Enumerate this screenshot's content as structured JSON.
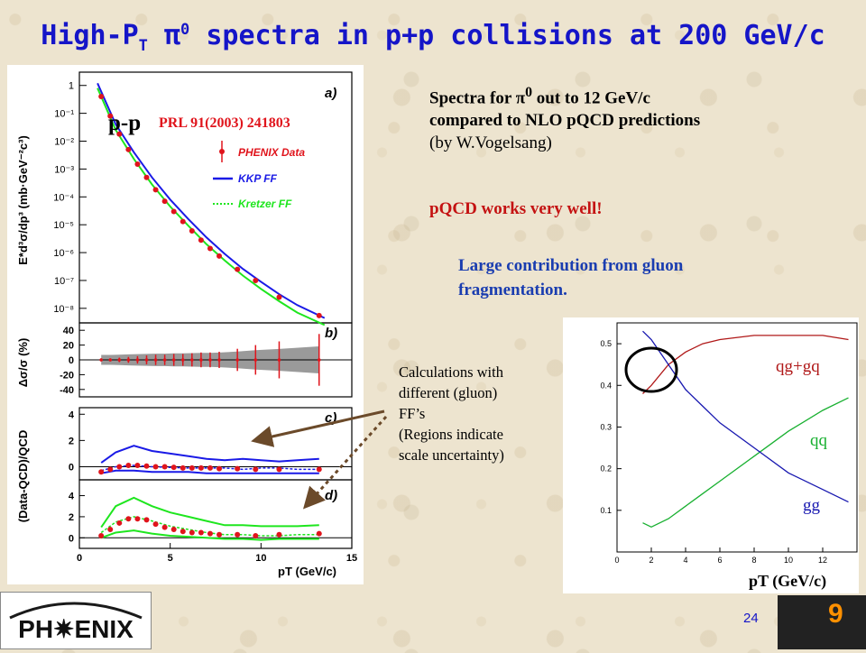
{
  "slide": {
    "title_main": "High-P",
    "title_sub": "T",
    "title_pi": "π",
    "title_zero": "0",
    "title_rest": " spectra in p+p collisions at 200 GeV/c",
    "page_number": "24",
    "logo_text": "PH✷ENIX",
    "photo_label": "9"
  },
  "text": {
    "line1a": "Spectra for ",
    "pi": "π",
    "zero": "0",
    "line1b": " out to 12 GeV/c",
    "line2": "compared to NLO pQCD predictions",
    "line3": "(by W.Vogelsang)",
    "pqcd": "pQCD works very well!",
    "gluon1": "Large contribution from gluon",
    "gluon2": "fragmentation.",
    "calc": [
      "Calculations with",
      "different (gluon)",
      "FF’s",
      "(Regions indicate",
      "scale uncertainty)"
    ]
  },
  "colors": {
    "title": "#1515c8",
    "data": "#e0141c",
    "kkp": "#1a1ae6",
    "kretzer": "#1ee61e",
    "qggq": "#b01818",
    "qq": "#18b030",
    "gg": "#1818b0"
  },
  "chart_data": [
    {
      "type": "scatter",
      "panel": "a)",
      "label_pp": "p-p",
      "label_ref": "PRL 91(2003) 241803",
      "ylabel": "E*d³σ/dp³ (mb·GeV⁻²c³)",
      "log_y": true,
      "ylim": [
        3e-09,
        3
      ],
      "xlim": [
        0,
        15
      ],
      "ytick_labels": [
        "1",
        "10⁻¹",
        "10⁻²",
        "10⁻³",
        "10⁻⁴",
        "10⁻⁵",
        "10⁻⁶",
        "10⁻⁷",
        "10⁻⁸"
      ],
      "legend": [
        "PHENIX Data",
        "KKP FF",
        "Kretzer FF"
      ],
      "series": [
        {
          "name": "PHENIX Data",
          "x": [
            1.2,
            1.7,
            2.2,
            2.7,
            3.2,
            3.7,
            4.2,
            4.7,
            5.2,
            5.7,
            6.2,
            6.7,
            7.2,
            7.7,
            8.7,
            9.7,
            11.0,
            13.2
          ],
          "y": [
            0.4,
            0.08,
            0.018,
            0.005,
            0.0015,
            0.0005,
            0.00018,
            7e-05,
            3e-05,
            1.3e-05,
            6e-06,
            2.8e-06,
            1.4e-06,
            7.5e-07,
            2.5e-07,
            1e-07,
            2.5e-08,
            5.5e-09
          ]
        },
        {
          "name": "KKP FF",
          "x": [
            1,
            2,
            3,
            4,
            5,
            6,
            7,
            8,
            9,
            10,
            11,
            12,
            13.5
          ],
          "y": [
            1.2,
            0.04,
            0.004,
            0.0005,
            8e-05,
            1.6e-05,
            3.5e-06,
            9e-07,
            2.6e-07,
            9e-08,
            3.2e-08,
            1.3e-08,
            4.5e-09
          ]
        },
        {
          "name": "Kretzer FF",
          "x": [
            1,
            2,
            3,
            4,
            5,
            6,
            7,
            8,
            9,
            10,
            11,
            12,
            13.5
          ],
          "y": [
            0.8,
            0.025,
            0.0023,
            0.00028,
            4.5e-05,
            9.2e-06,
            2e-06,
            5.2e-07,
            1.5e-07,
            5e-08,
            1.8e-08,
            7e-09,
            2.5e-09
          ]
        }
      ]
    },
    {
      "type": "scatter",
      "panel": "b)",
      "ylabel": "Δσ/σ (%)",
      "ylim": [
        -50,
        50
      ],
      "yticks": [
        40,
        20,
        0,
        -20,
        -40
      ],
      "xlim": [
        0,
        15
      ],
      "series": [
        {
          "name": "",
          "x": [
            1.2,
            1.7,
            2.2,
            2.7,
            3.2,
            3.7,
            4.2,
            4.7,
            5.2,
            5.7,
            6.2,
            6.7,
            7.2,
            7.7,
            8.7,
            9.7,
            11.0,
            13.2
          ],
          "y": [
            0,
            0,
            0,
            0,
            0,
            0,
            0,
            0,
            0,
            0,
            0,
            0,
            0,
            0,
            0,
            0,
            0,
            0
          ],
          "err": [
            2,
            2,
            3,
            4,
            5,
            6,
            7,
            7,
            8,
            8,
            9,
            10,
            10,
            11,
            15,
            20,
            25,
            35
          ]
        }
      ]
    },
    {
      "type": "line",
      "panel": "c)",
      "ylabel": "(Data-QCD)/QCD",
      "ylim": [
        -1,
        4.5
      ],
      "yticks": [
        4,
        2,
        0
      ],
      "xlim": [
        0,
        15
      ],
      "series": [
        {
          "name": "KKP upper",
          "x": [
            1.2,
            2,
            3,
            4,
            5,
            6,
            7,
            8,
            9,
            10,
            11,
            12,
            13.2
          ],
          "y": [
            0.3,
            1.1,
            1.6,
            1.2,
            1.0,
            0.8,
            0.6,
            0.5,
            0.6,
            0.5,
            0.4,
            0.5,
            0.6
          ]
        },
        {
          "name": "KKP central",
          "x": [
            1.2,
            2,
            3,
            4,
            5,
            6,
            7,
            8,
            9,
            10,
            11,
            12,
            13.2
          ],
          "y": [
            -0.3,
            0.0,
            0.1,
            0.0,
            -0.05,
            -0.1,
            -0.1,
            -0.1,
            -0.2,
            -0.1,
            -0.1,
            -0.2,
            -0.2
          ]
        },
        {
          "name": "KKP lower",
          "x": [
            1.2,
            2,
            3,
            4,
            5,
            6,
            7,
            8,
            9,
            10,
            11,
            12,
            13.2
          ],
          "y": [
            -0.5,
            -0.3,
            -0.3,
            -0.4,
            -0.4,
            -0.4,
            -0.5,
            -0.5,
            -0.5,
            -0.5,
            -0.5,
            -0.5,
            -0.5
          ]
        },
        {
          "name": "data",
          "x": [
            1.2,
            1.7,
            2.2,
            2.7,
            3.2,
            3.7,
            4.2,
            4.7,
            5.2,
            5.7,
            6.2,
            6.7,
            7.2,
            7.7,
            8.7,
            9.7,
            11.0,
            13.2
          ],
          "y": [
            -0.4,
            -0.2,
            0.0,
            0.1,
            0.1,
            0.05,
            0.0,
            0.0,
            -0.05,
            -0.1,
            -0.1,
            -0.1,
            -0.1,
            -0.15,
            -0.15,
            -0.2,
            -0.2,
            -0.2
          ]
        }
      ]
    },
    {
      "type": "line",
      "panel": "d)",
      "ylim": [
        -1,
        5.5
      ],
      "yticks": [
        4,
        2,
        0
      ],
      "xlim": [
        0,
        15
      ],
      "xticks": [
        0,
        5,
        10,
        15
      ],
      "xlabel": "pT (GeV/c)",
      "series": [
        {
          "name": "Kretzer upper",
          "x": [
            1.2,
            2,
            3,
            4,
            5,
            6,
            7,
            8,
            9,
            10,
            11,
            12,
            13.2
          ],
          "y": [
            1.0,
            3.0,
            3.8,
            3.0,
            2.4,
            2.0,
            1.6,
            1.2,
            1.2,
            1.1,
            1.1,
            1.1,
            1.2
          ]
        },
        {
          "name": "Kretzer central",
          "x": [
            1.2,
            2,
            3,
            4,
            5,
            6,
            7,
            8,
            9,
            10,
            11,
            12,
            13.2
          ],
          "y": [
            0.5,
            1.5,
            2.0,
            1.6,
            1.1,
            0.8,
            0.5,
            0.3,
            0.3,
            0.2,
            0.2,
            0.3,
            0.3
          ]
        },
        {
          "name": "Kretzer lower",
          "x": [
            1.2,
            2,
            3,
            4,
            5,
            6,
            7,
            8,
            9,
            10,
            11,
            12,
            13.2
          ],
          "y": [
            0.0,
            0.5,
            0.7,
            0.4,
            0.2,
            0.1,
            0.0,
            -0.1,
            -0.1,
            -0.2,
            -0.1,
            -0.1,
            -0.1
          ]
        },
        {
          "name": "data",
          "x": [
            1.2,
            1.7,
            2.2,
            2.7,
            3.2,
            3.7,
            4.2,
            4.7,
            5.2,
            5.7,
            6.2,
            6.7,
            7.2,
            7.7,
            8.7,
            9.7,
            11.0,
            13.2
          ],
          "y": [
            0.2,
            0.8,
            1.4,
            1.8,
            1.8,
            1.7,
            1.3,
            1.0,
            0.8,
            0.6,
            0.5,
            0.5,
            0.4,
            0.3,
            0.3,
            0.2,
            0.3,
            0.4
          ]
        }
      ]
    },
    {
      "type": "line",
      "panel": "fractions",
      "xlabel": "pT (GeV/c)",
      "xlim": [
        0,
        14
      ],
      "ylim": [
        0,
        0.55
      ],
      "xticks": [
        0,
        2,
        4,
        6,
        8,
        10,
        12
      ],
      "yticks": [
        0.1,
        0.2,
        0.3,
        0.4,
        0.5
      ],
      "series": [
        {
          "name": "qg+gq",
          "x": [
            1.5,
            2,
            3,
            4,
            5,
            6,
            8,
            10,
            12,
            13.5
          ],
          "y": [
            0.38,
            0.4,
            0.45,
            0.48,
            0.5,
            0.51,
            0.52,
            0.52,
            0.52,
            0.51
          ]
        },
        {
          "name": "qq",
          "x": [
            1.5,
            2,
            3,
            4,
            5,
            6,
            8,
            10,
            12,
            13.5
          ],
          "y": [
            0.07,
            0.06,
            0.08,
            0.11,
            0.14,
            0.17,
            0.23,
            0.29,
            0.34,
            0.37
          ]
        },
        {
          "name": "gg",
          "x": [
            1.5,
            2,
            3,
            4,
            5,
            6,
            8,
            10,
            12,
            13.5
          ],
          "y": [
            0.53,
            0.51,
            0.45,
            0.39,
            0.35,
            0.31,
            0.25,
            0.19,
            0.15,
            0.12
          ]
        }
      ]
    }
  ]
}
